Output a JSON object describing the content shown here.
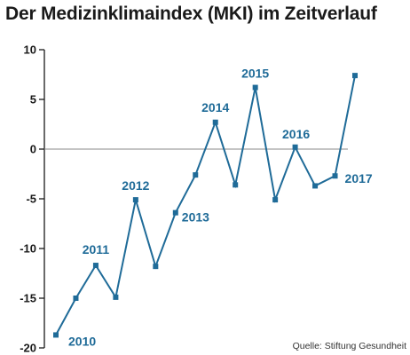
{
  "chart_data": {
    "type": "line",
    "title": "Der Medizinklimaindex (MKI) im Zeitverlauf",
    "xlabel": "",
    "ylabel": "",
    "ylim": [
      -20,
      10
    ],
    "yticks": [
      10,
      5,
      0,
      -5,
      -10,
      -15,
      -20
    ],
    "ytick_labels": [
      "10",
      "5",
      "0",
      "-5",
      "-10",
      "-15",
      "-20"
    ],
    "grid": false,
    "zero_line": true,
    "series": [
      {
        "color": "#1f6b98",
        "values": [
          -18.7,
          -15.0,
          -11.7,
          -14.9,
          -5.1,
          -11.8,
          -6.4,
          -2.6,
          2.7,
          -3.6,
          6.2,
          -5.1,
          0.2,
          -3.7,
          -2.7,
          7.4
        ]
      }
    ],
    "annotations": [
      {
        "text": "2010",
        "point": 0
      },
      {
        "text": "2011",
        "point": 2
      },
      {
        "text": "2012",
        "point": 4
      },
      {
        "text": "2013",
        "point": 6
      },
      {
        "text": "2014",
        "point": 8
      },
      {
        "text": "2015",
        "point": 10
      },
      {
        "text": "2016",
        "point": 12
      },
      {
        "text": "2017",
        "point": 14
      }
    ],
    "source": "Quelle: Stiftung Gesundheit"
  }
}
